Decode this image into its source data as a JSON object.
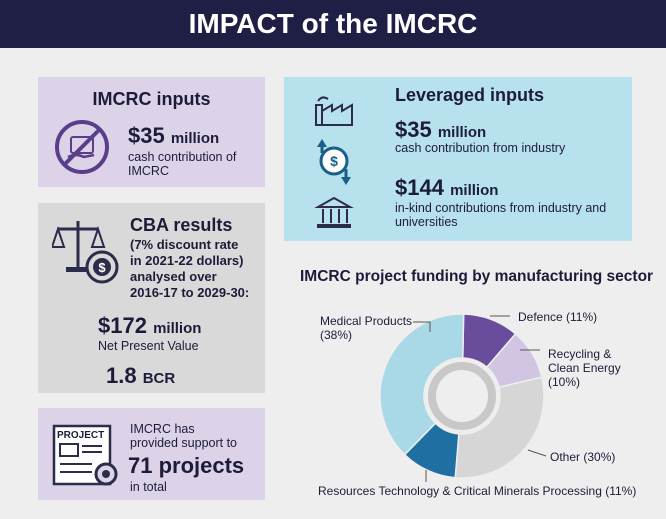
{
  "title": "IMPACT of the IMCRC",
  "inputs": {
    "heading": "IMCRC inputs",
    "amount": "$35",
    "unit": "million",
    "desc_line1": "cash contribution of",
    "desc_line2": "IMCRC"
  },
  "cba": {
    "heading": "CBA results",
    "sub1": "(7% discount rate",
    "sub2": "in 2021-22 dollars)",
    "sub3": "analysed over",
    "sub4": "2016-17 to 2029-30:",
    "npv_amount": "$172",
    "npv_unit": "million",
    "npv_label": "Net Present Value",
    "bcr_value": "1.8",
    "bcr_unit": "BCR"
  },
  "projects": {
    "icon_label": "PROJECT",
    "line1": "IMCRC has",
    "line2": "provided support to",
    "count": "71 projects",
    "line3": "in total"
  },
  "leveraged": {
    "heading": "Leveraged inputs",
    "cash_amount": "$35",
    "cash_unit": "million",
    "cash_desc": "cash contribution from industry",
    "inkind_amount": "$144",
    "inkind_unit": "million",
    "inkind_desc1": "in-kind contributions from industry and",
    "inkind_desc2": "universities"
  },
  "chart_data": {
    "type": "pie",
    "title": "IMCRC project funding by manufacturing sector",
    "categories": [
      "Defence",
      "Recycling & Clean Energy",
      "Other",
      "Resources Technology & Critical Minerals Processing",
      "Medical Products"
    ],
    "values": [
      11,
      10,
      30,
      11,
      38
    ],
    "colors": [
      "#6a4c9c",
      "#d2c5e3",
      "#d6d6d6",
      "#1f6fa3",
      "#a9d8e6"
    ],
    "labels": {
      "defence": "Defence (11%)",
      "recycling1": "Recycling &",
      "recycling2": "Clean Energy",
      "recycling3": "(10%)",
      "other": "Other (30%)",
      "resources": "Resources Technology & Critical Minerals Processing (11%)",
      "medical1": "Medical Products",
      "medical2": "(38%)"
    }
  }
}
